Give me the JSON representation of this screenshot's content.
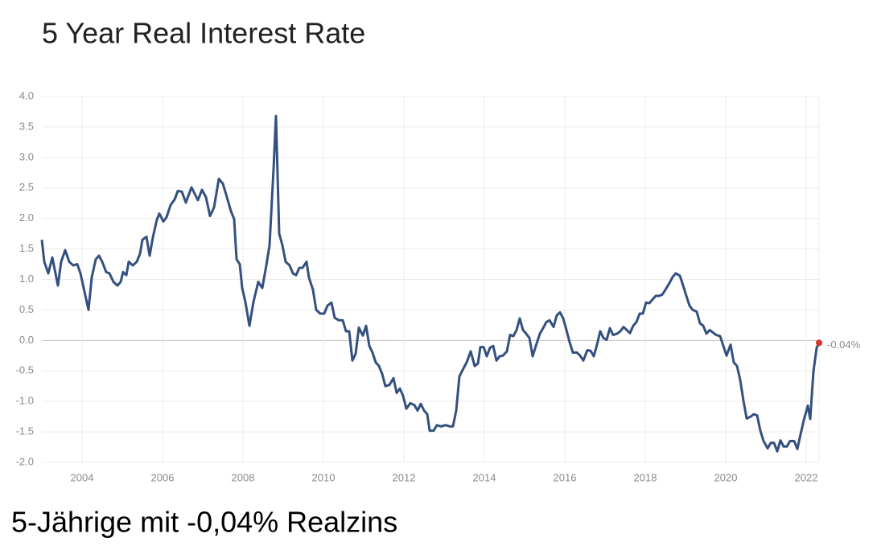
{
  "chart_data": {
    "type": "line",
    "title": "5 Year Real Interest Rate",
    "caption": "5-Jährige mit -0,04% Realzins",
    "color": "#34507f",
    "end_color": "#d9342b",
    "end_label": "-0.04%",
    "grid": true,
    "xlim": [
      2003,
      2022.32
    ],
    "ylim": [
      -2.0,
      4.0
    ],
    "xticks": [
      2004,
      2006,
      2008,
      2010,
      2012,
      2014,
      2016,
      2018,
      2020,
      2022
    ],
    "yticks": [
      {
        "value": 4.0,
        "label": "4.0"
      },
      {
        "value": 3.5,
        "label": "3.5"
      },
      {
        "value": 3.0,
        "label": "3.0"
      },
      {
        "value": 2.5,
        "label": "2.5"
      },
      {
        "value": 2.0,
        "label": "2.0"
      },
      {
        "value": 1.5,
        "label": "1.5"
      },
      {
        "value": 1.0,
        "label": "1.0"
      },
      {
        "value": 0.5,
        "label": "0.5"
      },
      {
        "value": 0.0,
        "label": "0.0"
      },
      {
        "value": -0.5,
        "label": "-0.5"
      },
      {
        "value": -1.0,
        "label": "-1.0"
      },
      {
        "value": -1.5,
        "label": "-1.5"
      },
      {
        "value": -2.0,
        "label": "-2.0"
      }
    ],
    "x": [
      2003.0,
      2003.06,
      2003.16,
      2003.26,
      2003.4,
      2003.48,
      2003.58,
      2003.68,
      2003.78,
      2003.88,
      2003.96,
      2004.04,
      2004.16,
      2004.24,
      2004.34,
      2004.42,
      2004.5,
      2004.6,
      2004.68,
      2004.78,
      2004.88,
      2004.96,
      2005.02,
      2005.1,
      2005.16,
      2005.26,
      2005.36,
      2005.44,
      2005.5,
      2005.6,
      2005.68,
      2005.76,
      2005.86,
      2005.92,
      2006.02,
      2006.1,
      2006.2,
      2006.3,
      2006.38,
      2006.48,
      2006.58,
      2006.72,
      2006.88,
      2006.98,
      2007.08,
      2007.18,
      2007.28,
      2007.4,
      2007.5,
      2007.6,
      2007.7,
      2007.78,
      2007.84,
      2007.92,
      2007.98,
      2008.06,
      2008.16,
      2008.26,
      2008.38,
      2008.48,
      2008.58,
      2008.66,
      2008.76,
      2008.82,
      2008.9,
      2008.98,
      2009.06,
      2009.16,
      2009.24,
      2009.32,
      2009.4,
      2009.48,
      2009.58,
      2009.64,
      2009.74,
      2009.82,
      2009.92,
      2010.02,
      2010.1,
      2010.2,
      2010.28,
      2010.38,
      2010.48,
      2010.56,
      2010.64,
      2010.72,
      2010.8,
      2010.88,
      2010.98,
      2011.06,
      2011.14,
      2011.22,
      2011.3,
      2011.38,
      2011.46,
      2011.54,
      2011.64,
      2011.74,
      2011.82,
      2011.9,
      2011.98,
      2012.06,
      2012.16,
      2012.26,
      2012.34,
      2012.42,
      2012.5,
      2012.58,
      2012.64,
      2012.74,
      2012.82,
      2012.92,
      2013.04,
      2013.14,
      2013.22,
      2013.3,
      2013.38,
      2013.48,
      2013.56,
      2013.66,
      2013.76,
      2013.84,
      2013.9,
      2013.98,
      2014.06,
      2014.14,
      2014.22,
      2014.3,
      2014.38,
      2014.46,
      2014.56,
      2014.64,
      2014.72,
      2014.8,
      2014.88,
      2014.96,
      2015.04,
      2015.12,
      2015.2,
      2015.28,
      2015.38,
      2015.46,
      2015.54,
      2015.62,
      2015.72,
      2015.8,
      2015.88,
      2015.96,
      2016.04,
      2016.12,
      2016.2,
      2016.3,
      2016.38,
      2016.46,
      2016.56,
      2016.64,
      2016.72,
      2016.8,
      2016.88,
      2016.96,
      2017.04,
      2017.12,
      2017.2,
      2017.3,
      2017.38,
      2017.46,
      2017.54,
      2017.62,
      2017.7,
      2017.78,
      2017.86,
      2017.94,
      2018.02,
      2018.1,
      2018.18,
      2018.26,
      2018.34,
      2018.42,
      2018.5,
      2018.6,
      2018.68,
      2018.76,
      2018.86,
      2018.94,
      2019.02,
      2019.1,
      2019.18,
      2019.28,
      2019.36,
      2019.44,
      2019.52,
      2019.6,
      2019.68,
      2019.76,
      2019.86,
      2019.94,
      2020.02,
      2020.12,
      2020.2,
      2020.28,
      2020.36,
      2020.44,
      2020.52,
      2020.62,
      2020.7,
      2020.78,
      2020.86,
      2020.94,
      2021.04,
      2021.12,
      2021.2,
      2021.28,
      2021.36,
      2021.44,
      2021.52,
      2021.6,
      2021.7,
      2021.78,
      2021.86,
      2021.94,
      2022.04,
      2022.1,
      2022.18,
      2022.26,
      2022.32
    ],
    "values": [
      1.65,
      1.29,
      1.1,
      1.36,
      0.9,
      1.29,
      1.48,
      1.29,
      1.23,
      1.25,
      1.1,
      0.86,
      0.5,
      1.03,
      1.33,
      1.39,
      1.29,
      1.12,
      1.1,
      0.96,
      0.9,
      0.96,
      1.12,
      1.07,
      1.29,
      1.23,
      1.29,
      1.42,
      1.65,
      1.7,
      1.39,
      1.69,
      1.98,
      2.08,
      1.95,
      2.02,
      2.22,
      2.31,
      2.45,
      2.44,
      2.26,
      2.51,
      2.3,
      2.47,
      2.35,
      2.04,
      2.18,
      2.65,
      2.57,
      2.35,
      2.12,
      1.99,
      1.33,
      1.25,
      0.86,
      0.63,
      0.24,
      0.63,
      0.96,
      0.86,
      1.23,
      1.56,
      2.81,
      3.68,
      1.75,
      1.56,
      1.29,
      1.23,
      1.1,
      1.07,
      1.19,
      1.19,
      1.29,
      1.03,
      0.83,
      0.5,
      0.44,
      0.44,
      0.57,
      0.62,
      0.37,
      0.33,
      0.33,
      0.15,
      0.15,
      -0.33,
      -0.22,
      0.21,
      0.08,
      0.24,
      -0.09,
      -0.2,
      -0.36,
      -0.42,
      -0.55,
      -0.75,
      -0.73,
      -0.62,
      -0.86,
      -0.79,
      -0.91,
      -1.12,
      -1.03,
      -1.06,
      -1.15,
      -1.04,
      -1.15,
      -1.21,
      -1.48,
      -1.48,
      -1.39,
      -1.41,
      -1.39,
      -1.41,
      -1.41,
      -1.15,
      -0.59,
      -0.46,
      -0.36,
      -0.18,
      -0.42,
      -0.38,
      -0.11,
      -0.11,
      -0.26,
      -0.12,
      -0.09,
      -0.33,
      -0.26,
      -0.25,
      -0.18,
      0.09,
      0.07,
      0.17,
      0.36,
      0.17,
      0.11,
      0.04,
      -0.26,
      -0.09,
      0.11,
      0.2,
      0.3,
      0.33,
      0.22,
      0.41,
      0.46,
      0.36,
      0.17,
      -0.03,
      -0.2,
      -0.2,
      -0.25,
      -0.33,
      -0.16,
      -0.17,
      -0.26,
      -0.07,
      0.15,
      0.04,
      0.01,
      0.2,
      0.09,
      0.11,
      0.15,
      0.22,
      0.17,
      0.12,
      0.24,
      0.3,
      0.44,
      0.44,
      0.62,
      0.61,
      0.67,
      0.73,
      0.73,
      0.75,
      0.83,
      0.94,
      1.04,
      1.1,
      1.06,
      0.9,
      0.73,
      0.57,
      0.5,
      0.47,
      0.28,
      0.24,
      0.11,
      0.17,
      0.13,
      0.09,
      0.07,
      -0.09,
      -0.25,
      -0.07,
      -0.36,
      -0.42,
      -0.65,
      -0.99,
      -1.28,
      -1.25,
      -1.21,
      -1.23,
      -1.48,
      -1.65,
      -1.77,
      -1.68,
      -1.68,
      -1.82,
      -1.64,
      -1.74,
      -1.74,
      -1.65,
      -1.65,
      -1.78,
      -1.54,
      -1.31,
      -1.07,
      -1.29,
      -0.51,
      -0.12,
      -0.04
    ]
  }
}
